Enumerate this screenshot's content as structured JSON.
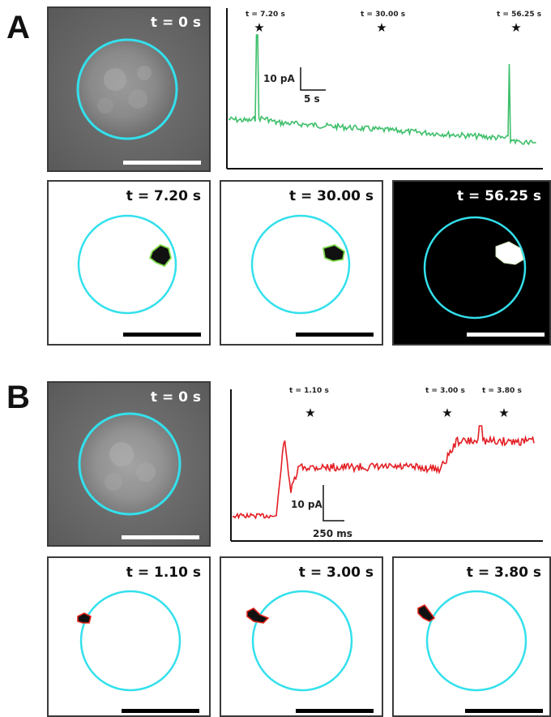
{
  "panel_a": {
    "letter": "A",
    "brightfield_time": "t = 0 s",
    "trace": {
      "color": "#3dbf6a",
      "star_labels": [
        "t = 7.20 s",
        "t = 30.00 s",
        "t = 56.25 s"
      ],
      "star_glyph": "★",
      "scale_current": "10 pA",
      "scale_time": "5 s"
    },
    "frames": [
      {
        "time": "t = 7.20 s",
        "style": "light"
      },
      {
        "time": "t = 30.00 s",
        "style": "light"
      },
      {
        "time": "t = 56.25 s",
        "style": "dark"
      }
    ]
  },
  "panel_b": {
    "letter": "B",
    "brightfield_time": "t = 0 s",
    "trace": {
      "color": "#e31e24",
      "star_labels": [
        "t = 1.10 s",
        "t = 3.00 s",
        "t = 3.80 s"
      ],
      "star_glyph": "★",
      "scale_current": "10 pA",
      "scale_time": "250 ms"
    },
    "frames": [
      {
        "time": "t = 1.10 s"
      },
      {
        "time": "t = 3.00 s"
      },
      {
        "time": "t = 3.80 s"
      }
    ]
  },
  "colors": {
    "circle": "#33e0ec",
    "green_outline": "#7fdc4a",
    "red_outline": "#e0241c",
    "scalebar_light": "#000000",
    "scalebar_dark": "#ffffff",
    "bf_background": "#6b6b6b"
  }
}
